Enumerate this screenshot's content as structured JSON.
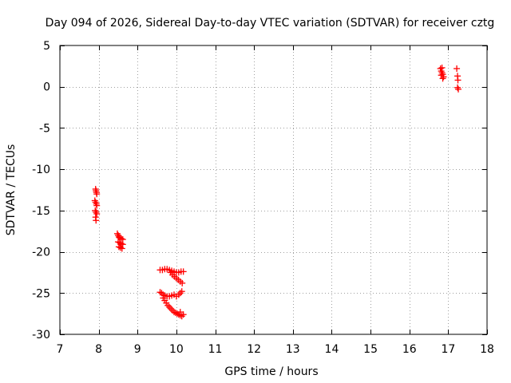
{
  "chart_data": {
    "type": "scatter",
    "title": "Day 094 of 2026, Sidereal Day-to-day VTEC variation (SDTVAR) for receiver cztg",
    "xlabel": "GPS time / hours",
    "ylabel": "SDTVAR / TECUs",
    "xlim": [
      7,
      18
    ],
    "ylim": [
      -30,
      5
    ],
    "xticks": [
      7,
      8,
      9,
      10,
      11,
      12,
      13,
      14,
      15,
      16,
      17,
      18
    ],
    "yticks": [
      5,
      0,
      -5,
      -10,
      -15,
      -20,
      -25,
      -30
    ],
    "grid": true,
    "marker": "+",
    "series_color": "#ff0000",
    "series": [
      {
        "name": "SDTVAR",
        "points": [
          [
            7.92,
            -12.4
          ],
          [
            7.93,
            -12.6
          ],
          [
            7.94,
            -12.8
          ],
          [
            7.95,
            -13.0
          ],
          [
            7.9,
            -13.8
          ],
          [
            7.92,
            -14.0
          ],
          [
            7.94,
            -14.2
          ],
          [
            7.95,
            -14.4
          ],
          [
            7.91,
            -15.0
          ],
          [
            7.93,
            -15.2
          ],
          [
            7.95,
            -15.4
          ],
          [
            7.92,
            -15.8
          ],
          [
            7.93,
            -16.2
          ],
          [
            8.48,
            -17.8
          ],
          [
            8.5,
            -18.0
          ],
          [
            8.52,
            -18.2
          ],
          [
            8.54,
            -18.3
          ],
          [
            8.58,
            -18.4
          ],
          [
            8.62,
            -18.5
          ],
          [
            8.5,
            -18.8
          ],
          [
            8.54,
            -18.9
          ],
          [
            8.58,
            -19.0
          ],
          [
            8.62,
            -19.1
          ],
          [
            8.52,
            -19.4
          ],
          [
            8.56,
            -19.5
          ],
          [
            8.6,
            -19.6
          ],
          [
            9.58,
            -22.2
          ],
          [
            9.64,
            -22.2
          ],
          [
            9.7,
            -22.1
          ],
          [
            9.76,
            -22.1
          ],
          [
            9.82,
            -22.2
          ],
          [
            9.88,
            -22.3
          ],
          [
            9.94,
            -22.4
          ],
          [
            10.0,
            -22.5
          ],
          [
            10.06,
            -22.5
          ],
          [
            10.12,
            -22.4
          ],
          [
            10.18,
            -22.4
          ],
          [
            9.85,
            -22.5
          ],
          [
            9.9,
            -22.8
          ],
          [
            9.95,
            -23.0
          ],
          [
            10.0,
            -23.2
          ],
          [
            10.05,
            -23.4
          ],
          [
            10.1,
            -23.6
          ],
          [
            10.15,
            -23.8
          ],
          [
            9.58,
            -24.9
          ],
          [
            9.62,
            -25.0
          ],
          [
            9.66,
            -25.2
          ],
          [
            9.7,
            -25.3
          ],
          [
            9.76,
            -25.4
          ],
          [
            9.82,
            -25.4
          ],
          [
            9.88,
            -25.3
          ],
          [
            9.94,
            -25.2
          ],
          [
            10.0,
            -25.4
          ],
          [
            10.06,
            -25.2
          ],
          [
            10.1,
            -25.0
          ],
          [
            10.14,
            -24.8
          ],
          [
            9.66,
            -25.6
          ],
          [
            9.7,
            -25.9
          ],
          [
            9.74,
            -26.2
          ],
          [
            9.78,
            -26.5
          ],
          [
            9.82,
            -26.7
          ],
          [
            9.86,
            -26.9
          ],
          [
            9.9,
            -27.1
          ],
          [
            9.94,
            -27.3
          ],
          [
            9.98,
            -27.4
          ],
          [
            10.02,
            -27.5
          ],
          [
            10.06,
            -27.6
          ],
          [
            10.1,
            -27.7
          ],
          [
            10.14,
            -27.8
          ],
          [
            10.18,
            -27.6
          ],
          [
            10.1,
            -27.3
          ],
          [
            16.8,
            2.2
          ],
          [
            16.82,
            1.9
          ],
          [
            16.84,
            1.7
          ],
          [
            16.86,
            1.5
          ],
          [
            16.88,
            1.2
          ],
          [
            16.84,
            2.3
          ],
          [
            16.82,
            1.4
          ],
          [
            16.86,
            1.0
          ],
          [
            17.22,
            2.2
          ],
          [
            17.24,
            1.3
          ],
          [
            17.25,
            0.8
          ],
          [
            17.24,
            -0.1
          ],
          [
            17.26,
            -0.3
          ]
        ]
      }
    ]
  }
}
